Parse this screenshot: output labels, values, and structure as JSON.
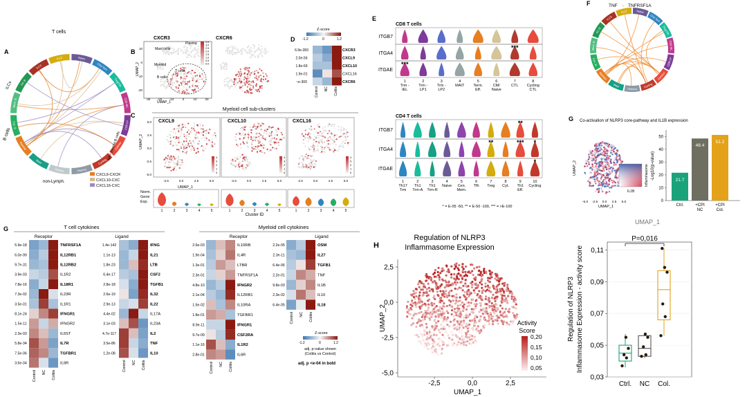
{
  "panels": {
    "A": {
      "letter": "A",
      "groups": [
        "T cells",
        "ILCs",
        "B cells",
        "non-Lymph.",
        "IgA+ plasma B cells"
      ],
      "segments": [
        {
          "label": "Naive",
          "color": "#6b5b95"
        },
        {
          "label": "CD4 Tem",
          "color": "#2e86c1"
        },
        {
          "label": "Treg/Tfh",
          "color": "#1abc9c"
        },
        {
          "label": "CD8 IEL",
          "color": "#c0398b"
        },
        {
          "label": "CD8 LP",
          "color": "#7d3c98"
        },
        {
          "label": "Cytotox",
          "color": "#e74c3c"
        },
        {
          "label": "Cycling",
          "color": "#c0392b"
        },
        {
          "label": "Plasma",
          "color": "#8e9aa6"
        },
        {
          "label": "Plasma",
          "color": "#bfc9ca"
        },
        {
          "label": "Mast",
          "color": "#16a085"
        },
        {
          "label": "Myeloid",
          "color": "#e67e22"
        },
        {
          "label": "Cyc. B",
          "color": "#27ae60"
        },
        {
          "label": "Mem. B",
          "color": "#52be80"
        },
        {
          "label": "GC B",
          "color": "#229954"
        },
        {
          "label": "ILC3",
          "color": "#a93226"
        },
        {
          "label": "ILC2",
          "color": "#d4ac0d"
        }
      ],
      "legend": [
        {
          "label": "CXCL9-CXCR",
          "color": "#e67e22"
        },
        {
          "label": "CXCL10-CXC",
          "color": "#d7b98e"
        },
        {
          "label": "CXCL16-CXC",
          "color": "#9b8ac4"
        }
      ]
    },
    "B": {
      "letter": "B",
      "plots": [
        "CXCR3",
        "CXCR6"
      ],
      "annotations": [
        "Mast cells",
        "Plasma",
        "Myeloid",
        "B cells",
        "T cells"
      ],
      "xlabel": "UMAP_1",
      "ylabel": "UMAP_2",
      "xticks": [
        "-30",
        "-20",
        "-10",
        "0",
        "10",
        "20"
      ],
      "yticks": [
        "10",
        "0",
        "-10",
        "-20"
      ],
      "scale": [
        "3.5",
        "3.0",
        "2.5",
        "2.0",
        "1.5",
        "1.0",
        "0.5",
        "0.0"
      ]
    },
    "C": {
      "letter": "C",
      "title": "Myeloid cell sub-clusters",
      "plots": [
        "CXCL9",
        "CXCL10",
        "CXCL16"
      ],
      "xlabel": "UMAP_1",
      "ylabel": "UMAP_2",
      "xticks": [
        "-2.5",
        "0.0",
        "2.5",
        "5.0"
      ],
      "yticks": [
        "5.0",
        "2.5",
        "0.0",
        "-2.5",
        "-5.0"
      ],
      "scale": [
        "4",
        "3",
        "2",
        "1",
        "0"
      ],
      "violin_label": [
        "Norm.",
        "Gene",
        "Exp."
      ],
      "clusters": [
        "1",
        "2",
        "3",
        "4",
        "5"
      ],
      "cluster_colors": [
        "#e74c3c",
        "#e67e22",
        "#2e86c1",
        "#27ae60",
        "#d4ac0d"
      ],
      "cluster_xlabel": "Cluster ID"
    },
    "D": {
      "letter": "D",
      "zscore_title": "Z-score",
      "zscore_ticks": [
        "-1.2",
        "0",
        "1.2"
      ],
      "pvals": [
        "6.9e-283",
        "2.0e-56",
        "1.8e-69",
        "1.9e-01",
        "~e-300"
      ],
      "genes": [
        "CXCR3",
        "CXCL9",
        "CXCL10",
        "CXCL16",
        "CXCR6"
      ],
      "gene_bold": [
        true,
        true,
        true,
        false,
        true
      ],
      "columns": [
        "Control",
        "NC",
        "Colitis"
      ],
      "matrix": [
        [
          -0.6,
          -0.9,
          1.2
        ],
        [
          -0.4,
          -0.7,
          1.2
        ],
        [
          -0.5,
          -0.5,
          1.2
        ],
        [
          -1.0,
          0.1,
          0.9
        ],
        [
          -0.3,
          -0.6,
          1.2
        ]
      ]
    },
    "E": {
      "letter": "E",
      "cd8": {
        "title": "CD8 T cells",
        "genes": [
          "ITGB7",
          "ITGA4",
          "ITGAE"
        ],
        "ticks_num": [
          "1",
          "2",
          "3",
          "4",
          "5",
          "6",
          "7",
          "8"
        ],
        "ticks_l1": [
          "Trm -",
          "Trm -",
          "Trm -",
          "MAIT",
          "Term.",
          "CM/",
          "CTL",
          "Cycling"
        ],
        "ticks_l2": [
          "IEL",
          "LP1",
          "LP2",
          "",
          "Eff.",
          "Naive",
          "",
          "CTL"
        ],
        "colors": [
          "#c0398b",
          "#7d3c98",
          "#5b6dcb",
          "#95a5a6",
          "#e67e22",
          "#d4c59a",
          "#b03a2e",
          "#e74c3c"
        ],
        "sig": [
          {
            "row": 1,
            "col": 6,
            "text": "***"
          },
          {
            "row": 2,
            "col": 0,
            "text": "***"
          }
        ]
      },
      "cd4": {
        "title": "CD4 T cells",
        "genes": [
          "ITGB7",
          "ITGA4",
          "ITGAE"
        ],
        "ticks_num": [
          "1",
          "2",
          "3",
          "4",
          "5",
          "6",
          "7",
          "8",
          "9",
          "10"
        ],
        "ticks_l1": [
          "Th17",
          "Th1",
          "Th1",
          "Naive",
          "Cen.",
          "Tfh",
          "Treg",
          "Cyt.",
          "Th1",
          "Cycling"
        ],
        "ticks_l2": [
          "Trm",
          "Trm-A",
          "Trm-R",
          "",
          "Mem.",
          "",
          "",
          "",
          "Eff.",
          ""
        ],
        "colors": [
          "#2e86c1",
          "#1abc9c",
          "#16a085",
          "#6b5b95",
          "#8e44ad",
          "#c0398b",
          "#d4ac0d",
          "#e67e22",
          "#e74c3c",
          "#c0392b"
        ],
        "sig": [
          {
            "row": 0,
            "col": 8,
            "text": "**"
          },
          {
            "row": 1,
            "col": 6,
            "text": "**"
          },
          {
            "row": 1,
            "col": 8,
            "text": "***"
          },
          {
            "row": 1,
            "col": 9,
            "text": "*"
          },
          {
            "row": 2,
            "col": 9,
            "text": "*"
          }
        ]
      },
      "footnote": "* = E-05 -50, ** = E-50 -100, *** = >E-100"
    },
    "F": {
      "letter": "F",
      "title_left": "TNF",
      "arrow": "→",
      "title_right": "TNFRSF1A",
      "segments": [
        {
          "label": "Naive",
          "color": "#6b5b95"
        },
        {
          "label": "CD4 Tem",
          "color": "#2e86c1"
        },
        {
          "label": "Treg/Tfh",
          "color": "#1abc9c"
        },
        {
          "label": "CD8 IEL",
          "color": "#c0398b"
        },
        {
          "label": "CD8 LP",
          "color": "#7d3c98"
        },
        {
          "label": "Cytotox",
          "color": "#e74c3c"
        },
        {
          "label": "Cycling",
          "color": "#c0392b"
        },
        {
          "label": "Plasma",
          "color": "#8e9aa6"
        },
        {
          "label": "Mast",
          "color": "#16a085"
        },
        {
          "label": "Myeloid",
          "color": "#e67e22"
        },
        {
          "label": "Cyc. B",
          "color": "#27ae60"
        },
        {
          "label": "Mem. B",
          "color": "#52be80"
        },
        {
          "label": "GC B",
          "color": "#229954"
        },
        {
          "label": "ILC3",
          "color": "#a93226"
        },
        {
          "label": "ILC2",
          "color": "#d4ac0d"
        }
      ]
    },
    "G": {
      "letter": "G",
      "title": "Co-activation of NLRP3 core-pathway and IL1B expression",
      "xlabel": "UMAP_1",
      "ylabel": "UMAP_2",
      "xticks": [
        "-5.0",
        "-2.5",
        "0.0",
        "2.5",
        "5.0"
      ],
      "legend_y": "Inflammasome",
      "legend_x": "IL1B"
    },
    "G2": {
      "letter": "G",
      "title": "T cell cytokines",
      "myeloid_title": "Myeloid cell cytokines",
      "receptor": "Receptor",
      "ligand": "Ligand",
      "columns": [
        "Control",
        "NC",
        "Colitis"
      ],
      "zscore_title": "Z-score",
      "zscore_ticks": [
        "-1.2",
        "0",
        "1.2"
      ],
      "note1": "adj. p-value shown",
      "note2": "(Colitis vs Control)",
      "note3": "adj. p <e-04 in bold",
      "t_receptor": {
        "pvals": [
          "5.9e-18",
          "6.0e-99",
          "9.7e-31",
          "3.9e-03",
          "7.8e-16",
          "7.3e-02",
          "3.5e-01",
          "8.1e-24",
          "1.5e-11",
          "2.3e-03",
          "5.8e-34",
          "7.5e-06",
          "3.6e-04"
        ],
        "genes": [
          "TNFRSF1A",
          "IL12RB1",
          "IL12RB2",
          "IL1R2",
          "IL18R1",
          "IL23R",
          "IL1R1",
          "IFNGR1",
          "IFNGR2",
          "IL6ST",
          "IL7R",
          "TGFBR1",
          "IL6R"
        ],
        "bold": [
          true,
          true,
          true,
          false,
          true,
          false,
          false,
          true,
          false,
          false,
          true,
          true,
          false
        ],
        "matrix": [
          [
            -0.8,
            -0.6,
            1.2
          ],
          [
            -0.7,
            -0.4,
            1.2
          ],
          [
            -0.6,
            -0.5,
            1.2
          ],
          [
            -0.3,
            -0.4,
            0.9
          ],
          [
            -0.7,
            -0.3,
            1.2
          ],
          [
            -0.6,
            1.2,
            -0.2
          ],
          [
            -0.5,
            1.0,
            -0.5
          ],
          [
            0.2,
            0.6,
            1.0
          ],
          [
            0.5,
            -0.3,
            0.4
          ],
          [
            0.6,
            0.3,
            -0.6
          ],
          [
            0.9,
            0.5,
            -0.8
          ],
          [
            0.8,
            0.6,
            -0.6
          ],
          [
            0.7,
            -0.2,
            -0.9
          ]
        ]
      },
      "t_ligand": {
        "pvals": [
          "1.4e-142",
          "1.1e-13",
          "1.8e-23",
          "6.4e-17",
          "2.8e-18",
          "2.6e-19",
          "2.9e-13",
          "4.4e-02",
          "3.1e-03",
          "4.7e-117",
          "3.5e-86",
          "1.2e-08"
        ],
        "genes": [
          "IFNG",
          "IL21",
          "LTB",
          "CSF2",
          "TGFB1",
          "IL32",
          "IL22",
          "IL17A",
          "IL23A",
          "IL2",
          "TNF",
          "IL10"
        ],
        "bold": [
          true,
          true,
          true,
          true,
          true,
          true,
          true,
          false,
          false,
          true,
          true,
          true
        ],
        "matrix": [
          [
            -0.5,
            -0.7,
            1.2
          ],
          [
            -0.6,
            -0.3,
            1.2
          ],
          [
            -0.6,
            0.3,
            1.1
          ],
          [
            -0.4,
            -0.5,
            1.2
          ],
          [
            -0.2,
            -0.7,
            1.2
          ],
          [
            0.1,
            -0.8,
            1.1
          ],
          [
            -0.3,
            -0.2,
            1.0
          ],
          [
            -0.6,
            1.2,
            -0.3
          ],
          [
            0.3,
            0.9,
            -0.9
          ],
          [
            1.0,
            0.3,
            -0.8
          ],
          [
            1.0,
            -0.3,
            -0.7
          ],
          [
            0.9,
            -0.2,
            -0.9
          ]
        ]
      },
      "m_receptor": {
        "pvals": [
          "2.6e-03",
          "1.9e-04",
          "1.3e-01",
          "2.3e-01",
          "4.8e-10",
          "2.1e-04",
          "1.5e-02",
          "1.8e-01",
          "8.9e-11",
          "9.7e-09",
          "1.1e-16",
          "2.8e-01"
        ],
        "genes": [
          "IL10RB",
          "IL4R",
          "LTBR",
          "TNFRSF1A",
          "IFNGR2",
          "IL12RB1",
          "IL10RA",
          "TGFBR1",
          "IFNGR1",
          "CSF2RA",
          "IL1R2",
          "IL6R"
        ],
        "bold": [
          false,
          false,
          false,
          false,
          true,
          false,
          false,
          false,
          true,
          true,
          true,
          false
        ],
        "matrix": [
          [
            -0.6,
            0.3,
            0.6
          ],
          [
            -0.5,
            0.2,
            0.7
          ],
          [
            -0.4,
            0.5,
            0.3
          ],
          [
            -0.3,
            0.2,
            0.5
          ],
          [
            -0.6,
            -0.4,
            1.2
          ],
          [
            -0.4,
            -0.6,
            1.1
          ],
          [
            0.3,
            -0.5,
            0.6
          ],
          [
            0.5,
            0.4,
            -0.5
          ],
          [
            -0.3,
            -0.3,
            1.2
          ],
          [
            0.1,
            -0.4,
            1.1
          ],
          [
            0.9,
            0.3,
            -0.7
          ],
          [
            0.6,
            0.5,
            -1.0
          ]
        ]
      },
      "m_ligand": {
        "pvals": [
          "2.2e-05",
          "2.3e-11",
          "6.4e-06",
          "2.2e-01",
          "9.8e-03",
          "2.3e-02",
          "6.4e-05"
        ],
        "genes": [
          "OSM",
          "IL27",
          "TGFB1",
          "TNF",
          "IL1B",
          "IL10",
          "IL18"
        ],
        "bold": [
          true,
          true,
          true,
          false,
          false,
          false,
          true
        ],
        "matrix": [
          [
            -0.7,
            -0.4,
            1.2
          ],
          [
            -0.5,
            -0.6,
            1.2
          ],
          [
            -0.4,
            0.1,
            1.0
          ],
          [
            -0.3,
            0.6,
            0.4
          ],
          [
            -0.6,
            0.2,
            0.6
          ],
          [
            -0.2,
            0.7,
            0.3
          ],
          [
            -0.8,
            -0.1,
            1.2
          ]
        ]
      }
    },
    "H": {
      "letter": "H",
      "title_line1": "Regulation of NLRP3",
      "title_line2": "Inflammasome Expression",
      "xlabel": "UMAP_1",
      "ylabel": "UMAP_2",
      "xticks": [
        "-2,5",
        "0,0",
        "2,5"
      ],
      "yticks": [
        "2,5",
        "0,0",
        "-2,5",
        "-5,0"
      ],
      "legend_title1": "Activity",
      "legend_title2": "Score",
      "legend_ticks": [
        "0,20",
        "0,15",
        "0,10",
        "0,05"
      ]
    }
  },
  "chart_data": [
    {
      "type": "bar",
      "title": "Co-activation of NLRP3 core-pathway and IL1B expression",
      "categories": [
        "Ctrl.",
        "+CPI NC",
        "+CPI Col."
      ],
      "values": [
        21.7,
        48.4,
        51.2
      ],
      "value_labels": [
        "21.7",
        "48.4",
        "51.2"
      ],
      "colors": [
        "#1aa37a",
        "#6e6e61",
        "#e3a21a"
      ],
      "ylabel": "-Log10(p-value)",
      "ylim": [
        0,
        55
      ],
      "yticks": [
        "0",
        "10",
        "20",
        "30",
        "40",
        "50"
      ]
    },
    {
      "type": "box",
      "title": "P=0,016",
      "top_label": "UMAP_1",
      "categories": [
        "Ctrl.",
        "NC",
        "Col."
      ],
      "colors": [
        "#1aa37a",
        "#555555",
        "#e3a21a"
      ],
      "ylabel_line1": "Regulation of NLRP3",
      "ylabel_line2": "Inflammasome Expression - activity score",
      "ylim": [
        0.03,
        0.115
      ],
      "yticks": [
        "0,03",
        "0,05",
        "0,07",
        "0,09",
        "0,11"
      ],
      "boxes": [
        {
          "q1": 0.04,
          "median": 0.045,
          "q3": 0.05,
          "min": 0.036,
          "max": 0.057
        },
        {
          "q1": 0.043,
          "median": 0.048,
          "q3": 0.056,
          "min": 0.042,
          "max": 0.057
        },
        {
          "q1": 0.066,
          "median": 0.085,
          "q3": 0.097,
          "min": 0.056,
          "max": 0.111
        }
      ],
      "points": [
        [
          0.037,
          0.042,
          0.044,
          0.048,
          0.055
        ],
        [
          0.043,
          0.044,
          0.049,
          0.055,
          0.057
        ],
        [
          0.056,
          0.068,
          0.076,
          0.096,
          0.099,
          0.111
        ]
      ]
    }
  ]
}
